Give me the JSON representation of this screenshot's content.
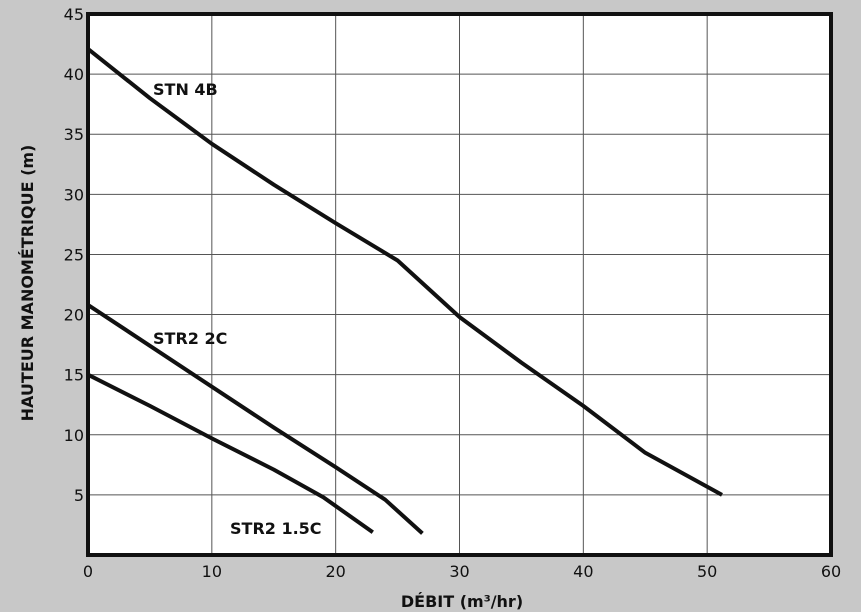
{
  "chart_data": {
    "type": "line",
    "title": "",
    "xlabel": "DÉBIT (m³/hr)",
    "ylabel": "HAUTEUR MANOMÉTRIQUE (m)",
    "xlim": [
      0,
      60
    ],
    "ylim": [
      0,
      45
    ],
    "xticks": [
      0,
      10,
      20,
      30,
      40,
      50,
      60
    ],
    "yticks": [
      5,
      10,
      15,
      20,
      25,
      30,
      35,
      40,
      45
    ],
    "grid": true,
    "legend": "none",
    "colors": {
      "background": "#c8c8c8",
      "plot_background": "#ffffff",
      "line": "#111111",
      "grid": "#555555"
    },
    "series": [
      {
        "name": "STN 4B",
        "label": "STN 4B",
        "points": [
          [
            0,
            42.1
          ],
          [
            5,
            38
          ],
          [
            10,
            34.2
          ],
          [
            15,
            30.8
          ],
          [
            20,
            27.6
          ],
          [
            25,
            24.5
          ],
          [
            30,
            19.8
          ],
          [
            35,
            16
          ],
          [
            40,
            12.4
          ],
          [
            45,
            8.5
          ],
          [
            51.2,
            5
          ]
        ]
      },
      {
        "name": "STR2 2C",
        "label": "STR2 2C",
        "points": [
          [
            0,
            20.8
          ],
          [
            5,
            17.4
          ],
          [
            10,
            14
          ],
          [
            15,
            10.6
          ],
          [
            20,
            7.3
          ],
          [
            24,
            4.6
          ],
          [
            27,
            1.8
          ]
        ]
      },
      {
        "name": "STR2 1.5C",
        "label": "STR2 1.5C",
        "points": [
          [
            0,
            15
          ],
          [
            5,
            12.4
          ],
          [
            10,
            9.7
          ],
          [
            15,
            7.1
          ],
          [
            19,
            4.8
          ],
          [
            23,
            1.9
          ]
        ]
      }
    ]
  }
}
